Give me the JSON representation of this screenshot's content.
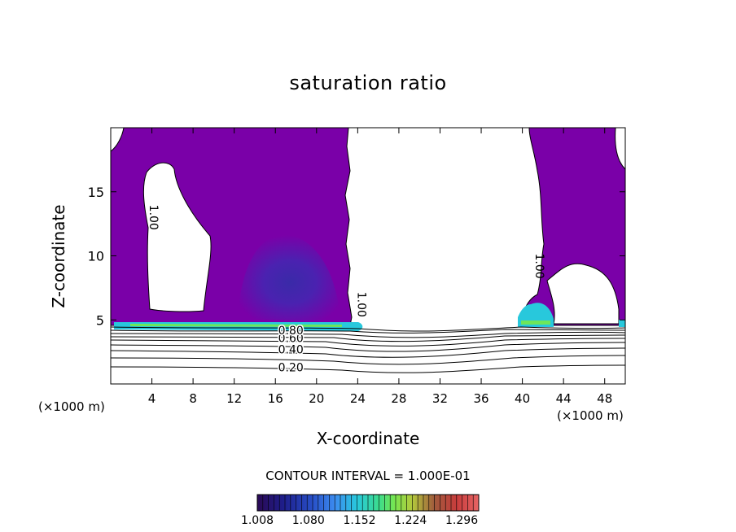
{
  "chart_data": {
    "type": "heatmap",
    "title": "saturation ratio",
    "xlabel": "X-coordinate",
    "ylabel": "Z-coordinate",
    "x_unit_label": "(×1000 m)",
    "xlim": [
      0,
      50
    ],
    "ylim": [
      0,
      20
    ],
    "x_ticks": [
      4,
      8,
      12,
      16,
      20,
      24,
      28,
      32,
      36,
      40,
      44,
      48
    ],
    "y_ticks": [
      5,
      10,
      15
    ],
    "contour_interval_text": "CONTOUR INTERVAL = 1.000E-01",
    "contour_labels": [
      {
        "text": "0.20",
        "x": 17.5,
        "z": 1.3
      },
      {
        "text": "0.40",
        "x": 17.5,
        "z": 2.7
      },
      {
        "text": "0.60",
        "x": 17.5,
        "z": 3.6
      },
      {
        "text": "0.80",
        "x": 17.5,
        "z": 4.2
      },
      {
        "text": "1.00",
        "x": 3.8,
        "z": 13.0,
        "rotated": true
      },
      {
        "text": "1.00",
        "x": 24.0,
        "z": 6.2,
        "rotated": true
      },
      {
        "text": "1.00",
        "x": 41.3,
        "z": 9.2,
        "rotated": true
      }
    ],
    "colorbar": {
      "min": 1.008,
      "max": 1.32,
      "tick_labels": [
        "1.008",
        "1.080",
        "1.152",
        "1.224",
        "1.296"
      ],
      "colors": [
        "#2a0a55",
        "#1e1e8c",
        "#2850c8",
        "#3c8cf0",
        "#28c8dc",
        "#3cdc8c",
        "#78e650",
        "#b4c83c",
        "#a05a3c",
        "#c83c3c",
        "#e66464"
      ]
    },
    "saturated_color": "#7a00a8"
  }
}
